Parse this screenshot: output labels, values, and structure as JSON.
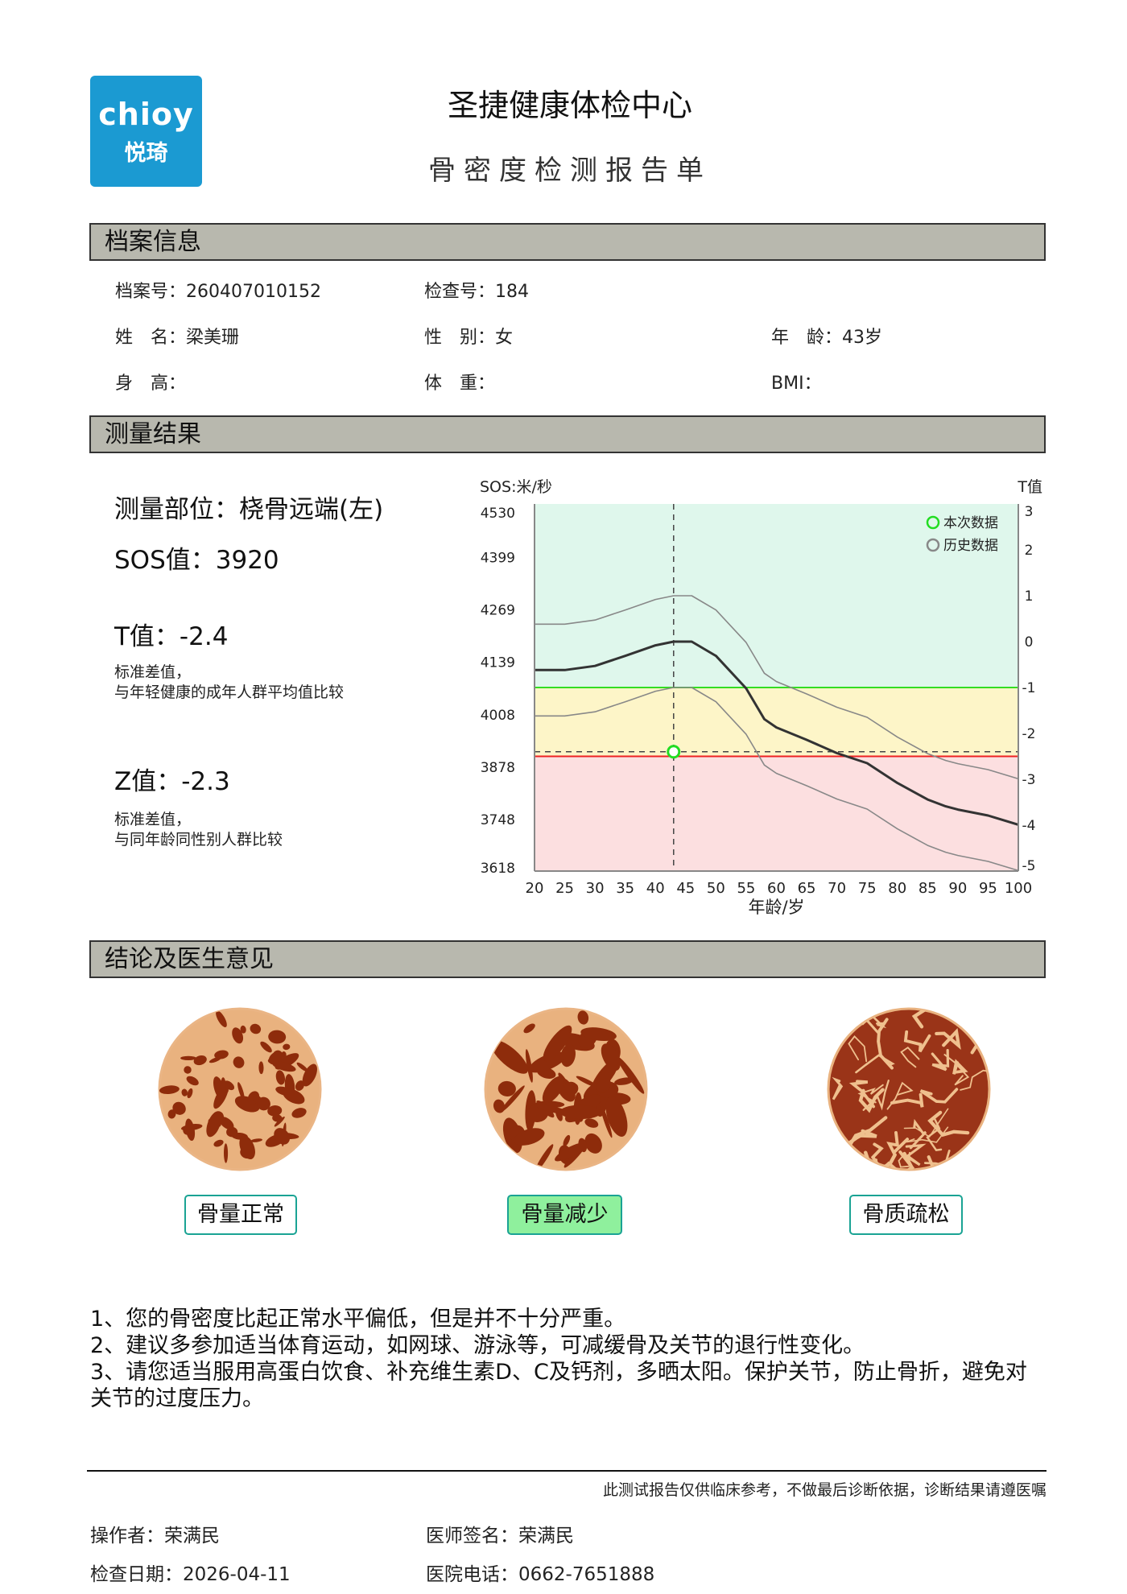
{
  "header": {
    "logo_text_en": "chioy",
    "logo_text_cn": "悦琦",
    "title": "圣捷健康体检中心",
    "subtitle": "骨密度检测报告单"
  },
  "colors": {
    "logo": "#1b9ad2",
    "section_bar": "#b8b8ae",
    "active_tag": "#8ff09d",
    "tag_border": "#1aa394"
  },
  "profile": {
    "section_title": "档案信息",
    "file_no": "档案号：260407010152",
    "exam_no": "检查号：184",
    "name": "姓　名：梁美珊",
    "gender": "性　别：女",
    "age": "年　龄：43岁",
    "height": "身　高：",
    "weight": "体　重：",
    "bmi": "BMI："
  },
  "results": {
    "section_title": "测量结果",
    "site": "测量部位：桡骨远端(左)",
    "sos": "SOS值：3920",
    "t_value": "T值：-2.4",
    "t_desc_1": "标准差值，",
    "t_desc_2": "与年轻健康的成年人群平均值比较",
    "z_value": "Z值：-2.3",
    "z_desc_1": "标准差值，",
    "z_desc_2": "与同年龄同性别人群比较"
  },
  "chart_data": {
    "type": "line",
    "xlabel": "年龄/岁",
    "ylabel_left": "SOS:米/秒",
    "ylabel_right": "T值",
    "x_ticks": [
      "20",
      "25",
      "30",
      "35",
      "40",
      "45",
      "50",
      "55",
      "60",
      "65",
      "70",
      "75",
      "80",
      "85",
      "90",
      "95",
      "100"
    ],
    "xlim": [
      20,
      100
    ],
    "y_left_ticks": [
      "4530",
      "4399",
      "4269",
      "4139",
      "4008",
      "3878",
      "3748",
      "3618"
    ],
    "y_left_lim": [
      3618,
      4530
    ],
    "y_right_ticks": [
      "3",
      "2",
      "1",
      "0",
      "-1",
      "-2",
      "-3",
      "-4",
      "-5"
    ],
    "y_right_lim": [
      -5,
      3
    ],
    "zones": [
      {
        "from": -1,
        "to": 3,
        "color": "#dff7ec"
      },
      {
        "from": -2.5,
        "to": -1,
        "color": "#fdf5c8"
      },
      {
        "from": -5,
        "to": -2.5,
        "color": "#fcdfe0"
      }
    ],
    "threshold_lines": [
      {
        "t": -1,
        "color": "#33dd22"
      },
      {
        "t": -2.5,
        "color": "#ee2222"
      }
    ],
    "ages": [
      20,
      25,
      30,
      35,
      40,
      43,
      46,
      50,
      55,
      58,
      60,
      65,
      70,
      75,
      80,
      85,
      88,
      90,
      95,
      100
    ],
    "series": [
      {
        "t": [
          0.38,
          0.38,
          0.47,
          0.69,
          0.92,
          1,
          1,
          0.69,
          -0.02,
          -0.69,
          -0.87,
          -1.14,
          -1.43,
          -1.65,
          -2.08,
          -2.44,
          -2.59,
          -2.66,
          -2.79,
          -2.99
        ],
        "color": "#888888"
      },
      {
        "t": [
          -0.62,
          -0.62,
          -0.53,
          -0.31,
          -0.08,
          0,
          0,
          -0.31,
          -1.02,
          -1.69,
          -1.87,
          -2.14,
          -2.43,
          -2.65,
          -3.08,
          -3.44,
          -3.59,
          -3.66,
          -3.79,
          -3.99
        ],
        "color": "#333333"
      },
      {
        "t": [
          -1.62,
          -1.62,
          -1.53,
          -1.31,
          -1.08,
          -1,
          -1,
          -1.31,
          -2.02,
          -2.69,
          -2.87,
          -3.14,
          -3.43,
          -3.65,
          -4.08,
          -4.44,
          -4.59,
          -4.66,
          -4.79,
          -4.99
        ],
        "color": "#888888"
      }
    ],
    "current_point": {
      "age": 43,
      "t": -2.4,
      "color": "#22dd22"
    },
    "legend": [
      {
        "name": "本次数据",
        "color": "#22dd22"
      },
      {
        "name": "历史数据",
        "color": "#888888"
      }
    ],
    "legend_position": "top-right"
  },
  "conclusion": {
    "section_title": "结论及医生意见",
    "categories": [
      {
        "label": "骨量正常",
        "active": false
      },
      {
        "label": "骨量减少",
        "active": true
      },
      {
        "label": "骨质疏松",
        "active": false
      }
    ],
    "advice": [
      "1、您的骨密度比起正常水平偏低，但是并不十分严重。",
      "2、建议多参加适当体育运动，如网球、游泳等，可减缓骨及关节的退行性变化。",
      "3、请您适当服用高蛋白饮食、补充维生素D、C及钙剂，多晒太阳。保护关节，防止骨折，避免对关节的过度压力。"
    ]
  },
  "footer": {
    "disclaimer": "此测试报告仅供临床参考，不做最后诊断依据，诊断结果请遵医嘱",
    "operator": "操作者：荣满民",
    "doctor": "医师签名：荣满民",
    "date": "检查日期：2026-04-11",
    "phone": "医院电话：0662-7651888"
  }
}
